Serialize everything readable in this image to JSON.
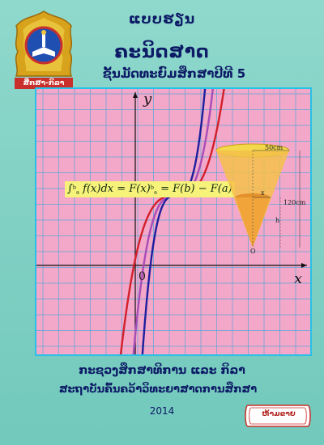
{
  "header": {
    "line1": "ແບບຮຽນ",
    "line2": "ຄະນິດສາດ",
    "line3": "ຊັ້ນມັດທະຍົມສຶກສາປີທີ 5"
  },
  "logo": {
    "caption": "ສຶກສາ-ກິລາ"
  },
  "formula": {
    "main": "f(x)dx = F(x)",
    "upper": "b",
    "lower": "a",
    "rest": " = F(b) − F(a)"
  },
  "graph": {
    "axis_x": "x",
    "axis_y": "y",
    "origin": "0"
  },
  "cone": {
    "top_label": "50cm",
    "height_label": "120cm",
    "x_label": "x",
    "h_label": "h",
    "apex_label": "O"
  },
  "footer": {
    "ministry": "ກະຊວງສຶກສາທິການ ແລະ ກິລາ",
    "institute": "ສະຖາບັນຄົ້ນຄວ້າວິທະຍາສາດການສຶກສາ",
    "year": "2014"
  },
  "badge": {
    "text": "ຫ້າມຂາຍ"
  },
  "colors": {
    "background": "#7ccfc3",
    "panel": "#f3a7c9",
    "grid": "#5aa7d6",
    "curve_blue": "#1d1f9e",
    "curve_red": "#d3202a",
    "curve_purple": "#a84db8",
    "formula_bg": "#f6f27a",
    "text": "#0d1a66"
  }
}
